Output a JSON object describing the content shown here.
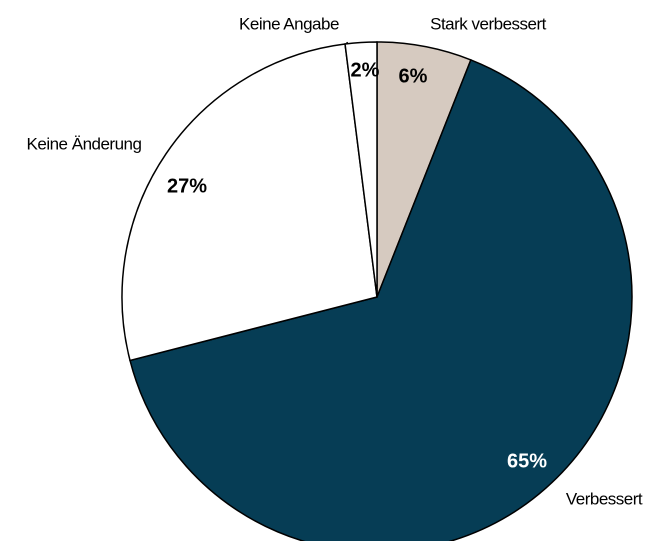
{
  "chart_data": {
    "type": "pie",
    "categories": [
      "Stark verbessert",
      "Verbessert",
      "Keine Änderung",
      "Keine Angabe"
    ],
    "values": [
      6,
      65,
      27,
      2
    ],
    "value_labels": [
      "6%",
      "65%",
      "27%",
      "2%"
    ],
    "colors": [
      "#d6cac0",
      "#063d55",
      "#ffffff",
      "#ffffff"
    ]
  }
}
